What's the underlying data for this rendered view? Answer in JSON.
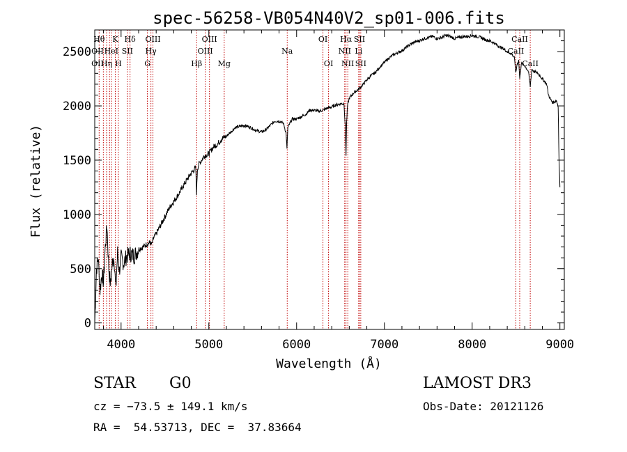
{
  "chart_data": {
    "type": "line",
    "title": "spec-56258-VB054N40V2_sp01-006.fits",
    "xlabel": "Wavelength (Å)",
    "ylabel": "Flux (relative)",
    "xlim": [
      3700,
      9050
    ],
    "ylim": [
      -60,
      2700
    ],
    "xticks": [
      "4000",
      "5000",
      "6000",
      "7000",
      "8000",
      "9000"
    ],
    "yticks": [
      "0",
      "500",
      "1000",
      "1500",
      "2000",
      "2500"
    ],
    "series": [
      {
        "name": "flux",
        "x": [
          3700,
          3720,
          3740,
          3760,
          3780,
          3800,
          3820,
          3840,
          3860,
          3880,
          3900,
          3920,
          3940,
          3960,
          3980,
          4000,
          4030,
          4060,
          4100,
          4150,
          4200,
          4250,
          4300,
          4330,
          4350,
          4370,
          4400,
          4450,
          4500,
          4550,
          4600,
          4650,
          4700,
          4750,
          4800,
          4850,
          4860,
          4870,
          4880,
          4900,
          4950,
          5000,
          5050,
          5100,
          5150,
          5200,
          5250,
          5300,
          5350,
          5400,
          5450,
          5500,
          5550,
          5600,
          5650,
          5700,
          5750,
          5800,
          5850,
          5880,
          5890,
          5900,
          5930,
          5950,
          6000,
          6050,
          6100,
          6150,
          6200,
          6250,
          6300,
          6350,
          6400,
          6450,
          6500,
          6540,
          6555,
          6563,
          6570,
          6580,
          6600,
          6650,
          6700,
          6750,
          6800,
          6850,
          6900,
          6950,
          7000,
          7050,
          7100,
          7150,
          7200,
          7250,
          7300,
          7350,
          7400,
          7450,
          7500,
          7550,
          7600,
          7650,
          7700,
          7750,
          7800,
          7850,
          7900,
          7950,
          8000,
          8050,
          8100,
          8150,
          8200,
          8250,
          8300,
          8350,
          8400,
          8450,
          8480,
          8498,
          8510,
          8530,
          8542,
          8560,
          8600,
          8640,
          8662,
          8680,
          8700,
          8750,
          8800,
          8850,
          8870,
          8900,
          8920,
          8940,
          8960,
          8980,
          8990,
          9000
        ],
        "values": [
          0,
          500,
          600,
          300,
          450,
          380,
          700,
          900,
          500,
          350,
          550,
          620,
          300,
          650,
          480,
          600,
          550,
          610,
          640,
          620,
          680,
          700,
          730,
          740,
          720,
          780,
          820,
          900,
          980,
          1060,
          1120,
          1180,
          1250,
          1320,
          1380,
          1430,
          1200,
          1420,
          1450,
          1480,
          1540,
          1560,
          1620,
          1650,
          1700,
          1720,
          1760,
          1800,
          1810,
          1820,
          1810,
          1790,
          1770,
          1760,
          1780,
          1820,
          1860,
          1860,
          1840,
          1750,
          1600,
          1800,
          1850,
          1880,
          1880,
          1900,
          1920,
          1960,
          1960,
          1950,
          1960,
          1980,
          1990,
          2010,
          2020,
          2020,
          1800,
          1550,
          1850,
          2000,
          2070,
          2120,
          2150,
          2190,
          2240,
          2280,
          2310,
          2360,
          2400,
          2440,
          2470,
          2490,
          2510,
          2540,
          2570,
          2590,
          2600,
          2620,
          2630,
          2640,
          2620,
          2630,
          2650,
          2640,
          2620,
          2630,
          2640,
          2640,
          2650,
          2640,
          2630,
          2610,
          2600,
          2580,
          2550,
          2530,
          2500,
          2480,
          2450,
          2300,
          2380,
          2420,
          2250,
          2390,
          2370,
          2320,
          2180,
          2340,
          2320,
          2300,
          2250,
          2200,
          2100,
          2050,
          2030,
          2040,
          2050,
          2000,
          1500,
          1250
        ]
      }
    ],
    "lines": [
      {
        "w": 3750,
        "label": "Hθ",
        "row": 0
      },
      {
        "w": 3798,
        "label": "",
        "row": 0
      },
      {
        "w": 3835,
        "label": "Hη",
        "row": 2
      },
      {
        "w": 3869,
        "label": "",
        "row": 0
      },
      {
        "w": 3889,
        "label": "HeI",
        "row": 1
      },
      {
        "w": 3934,
        "label": "K",
        "row": 0
      },
      {
        "w": 3969,
        "label": "H",
        "row": 2
      },
      {
        "w": 4072,
        "label": "SII",
        "row": 1
      },
      {
        "w": 4102,
        "label": "Hδ",
        "row": 0
      },
      {
        "w": 4300,
        "label": "G",
        "row": 2
      },
      {
        "w": 4340,
        "label": "Hγ",
        "row": 1
      },
      {
        "w": 4363,
        "label": "OIII",
        "row": 0
      },
      {
        "w": 4861,
        "label": "Hβ",
        "row": 2
      },
      {
        "w": 4959,
        "label": "OIII",
        "row": 1
      },
      {
        "w": 5007,
        "label": "OIII",
        "row": 0
      },
      {
        "w": 5175,
        "label": "Mg",
        "row": 2
      },
      {
        "w": 5893,
        "label": "Na",
        "row": 1
      },
      {
        "w": 6300,
        "label": "OI",
        "row": 0
      },
      {
        "w": 6364,
        "label": "OI",
        "row": 2
      },
      {
        "w": 6548,
        "label": "NII",
        "row": 1
      },
      {
        "w": 6563,
        "label": "Hα",
        "row": 0
      },
      {
        "w": 6583,
        "label": "NII",
        "row": 2
      },
      {
        "w": 6707,
        "label": "Li",
        "row": 1
      },
      {
        "w": 6716,
        "label": "SII",
        "row": 0
      },
      {
        "w": 6731,
        "label": "SII",
        "row": 2
      },
      {
        "w": 8498,
        "label": "CaII",
        "row": 1
      },
      {
        "w": 8542,
        "label": "CaII",
        "row": 0
      },
      {
        "w": 8662,
        "label": "CaII",
        "row": 2
      }
    ],
    "edge_labels": [
      {
        "label": "OII",
        "row": 2
      },
      {
        "label": "OII",
        "row": 1
      }
    ]
  },
  "info": {
    "class": "STAR",
    "subclass": "G0",
    "survey": "LAMOST DR3",
    "velocity": "cz = −73.5 ± 149.1 km/s",
    "obsdate": "Obs-Date: 20121126",
    "coords": "RA =  54.53713, DEC =  37.83664"
  },
  "colors": {
    "spectrum": "#000000",
    "line_marker": "#c00000"
  }
}
